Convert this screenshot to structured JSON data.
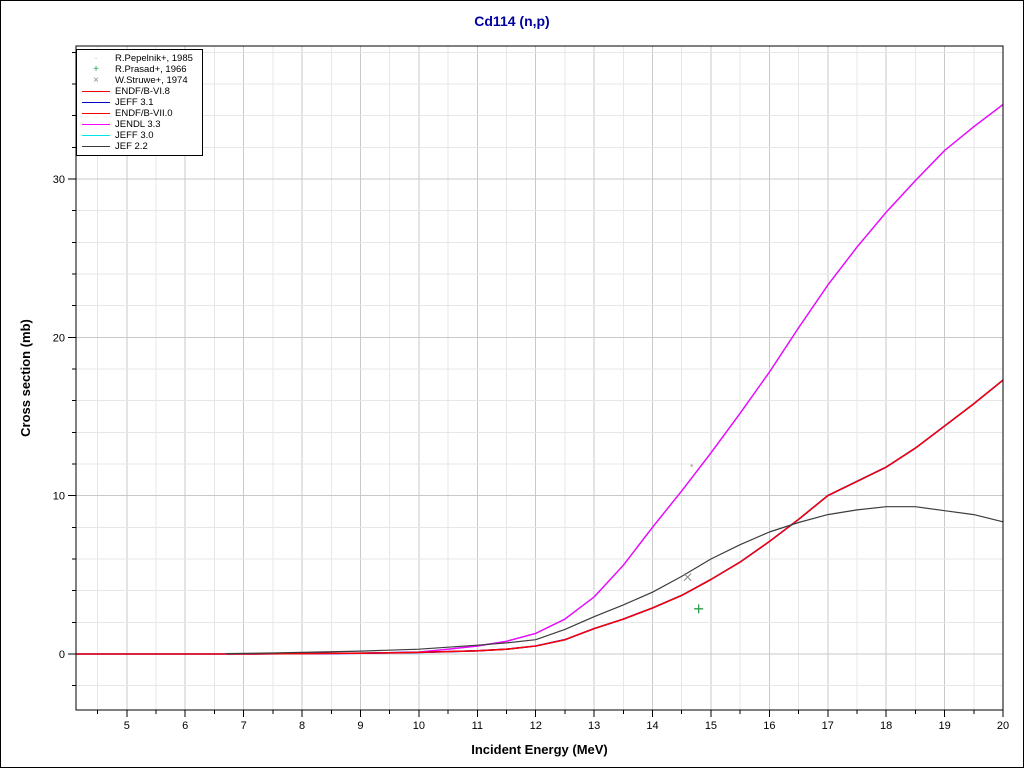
{
  "window": {
    "background": "#ffffff",
    "border_color": "#000000"
  },
  "colors": {
    "title": "#0000a0",
    "axis": "#000000",
    "grid_major": "#c9c9c9",
    "grid_minor": "#e7e7e7",
    "endf_b_vi8": "#f00000",
    "jeff_31": "#0000cc",
    "endf_b_vii0": "#ff0000",
    "jendl_33": "#ff00ff",
    "jeff_30": "#00e6e6",
    "jef_22": "#3c3c3c",
    "pepelnik": "#b4b4b4",
    "prasad": "#2e9b4e",
    "struwe": "#8a8a8a"
  },
  "chart_data": {
    "type": "line",
    "title": "Cd114 (n,p)",
    "xlabel": "Incident Energy (MeV)",
    "ylabel": "Cross section (mb)",
    "xlim": [
      4.13,
      20
    ],
    "ylim": [
      -3.54,
      38.4
    ],
    "x_major_tick_step": 1,
    "x_minor_tick_step": 0.5,
    "x_tick_labels": [
      5,
      6,
      7,
      8,
      9,
      10,
      11,
      12,
      13,
      14,
      15,
      16,
      17,
      18,
      19,
      20
    ],
    "y_major_tick_step": 10,
    "y_minor_tick_step": 2,
    "y_tick_labels": [
      0,
      10,
      20,
      30
    ],
    "grid": true,
    "legend_position": "top-left",
    "series": [
      {
        "name": "JEFF 3.0",
        "color": "#00e6e6",
        "width": 1.4,
        "points": [
          [
            8,
            0.01
          ],
          [
            9,
            0.04
          ],
          [
            10,
            0.12
          ],
          [
            10.5,
            0.3
          ],
          [
            11,
            0.5
          ],
          [
            11.5,
            0.8
          ],
          [
            12,
            1.3
          ],
          [
            12.5,
            2.2
          ],
          [
            13,
            3.6
          ],
          [
            13.5,
            5.6
          ],
          [
            14,
            8.0
          ],
          [
            14.5,
            10.3
          ],
          [
            15,
            12.7
          ],
          [
            15.5,
            15.2
          ],
          [
            16,
            17.8
          ],
          [
            16.5,
            20.6
          ],
          [
            17,
            23.3
          ],
          [
            17.5,
            25.7
          ],
          [
            18,
            27.9
          ],
          [
            18.5,
            29.9
          ],
          [
            19,
            31.8
          ],
          [
            19.5,
            33.3
          ],
          [
            20,
            34.7
          ]
        ]
      },
      {
        "name": "JENDL 3.3",
        "color": "#ff00ff",
        "width": 1.4,
        "points": [
          [
            8,
            0.01
          ],
          [
            9,
            0.04
          ],
          [
            10,
            0.12
          ],
          [
            10.5,
            0.3
          ],
          [
            11,
            0.5
          ],
          [
            11.5,
            0.8
          ],
          [
            12,
            1.3
          ],
          [
            12.5,
            2.2
          ],
          [
            13,
            3.6
          ],
          [
            13.5,
            5.6
          ],
          [
            14,
            8.0
          ],
          [
            14.5,
            10.3
          ],
          [
            15,
            12.7
          ],
          [
            15.5,
            15.2
          ],
          [
            16,
            17.8
          ],
          [
            16.5,
            20.6
          ],
          [
            17,
            23.3
          ],
          [
            17.5,
            25.7
          ],
          [
            18,
            27.9
          ],
          [
            18.5,
            29.9
          ],
          [
            19,
            31.8
          ],
          [
            19.5,
            33.3
          ],
          [
            20,
            34.7
          ]
        ]
      },
      {
        "name": "JEFF 3.1",
        "color": "#0000cc",
        "width": 1.6,
        "points": [
          [
            4.13,
            0
          ],
          [
            5,
            0
          ],
          [
            6,
            0
          ],
          [
            7,
            0
          ],
          [
            8,
            0.02
          ],
          [
            9,
            0.05
          ],
          [
            10,
            0.1
          ],
          [
            11,
            0.2
          ],
          [
            11.5,
            0.3
          ],
          [
            12,
            0.5
          ],
          [
            12.5,
            0.9
          ],
          [
            13,
            1.6
          ],
          [
            13.5,
            2.2
          ],
          [
            14,
            2.9
          ],
          [
            14.5,
            3.7
          ],
          [
            15,
            4.7
          ],
          [
            15.5,
            5.8
          ],
          [
            16,
            7.1
          ],
          [
            16.5,
            8.5
          ],
          [
            17,
            10.0
          ],
          [
            17.5,
            10.9
          ],
          [
            18,
            11.8
          ],
          [
            18.5,
            13.0
          ],
          [
            19,
            14.4
          ],
          [
            19.5,
            15.8
          ],
          [
            20,
            17.3
          ]
        ]
      },
      {
        "name": "ENDF/B-VI.8",
        "color": "#f00000",
        "width": 1.3,
        "points": [
          [
            4.13,
            0
          ],
          [
            5,
            0
          ],
          [
            6,
            0
          ],
          [
            7,
            0
          ],
          [
            8,
            0.02
          ],
          [
            9,
            0.05
          ],
          [
            10,
            0.1
          ],
          [
            11,
            0.2
          ],
          [
            11.5,
            0.3
          ],
          [
            12,
            0.5
          ],
          [
            12.5,
            0.9
          ],
          [
            13,
            1.6
          ],
          [
            13.5,
            2.2
          ],
          [
            14,
            2.9
          ],
          [
            14.5,
            3.7
          ],
          [
            15,
            4.7
          ],
          [
            15.5,
            5.8
          ],
          [
            16,
            7.1
          ],
          [
            16.5,
            8.5
          ],
          [
            17,
            10.0
          ],
          [
            17.5,
            10.9
          ],
          [
            18,
            11.8
          ],
          [
            18.5,
            13.0
          ],
          [
            19,
            14.4
          ],
          [
            19.5,
            15.8
          ],
          [
            20,
            17.3
          ]
        ]
      },
      {
        "name": "ENDF/B-VII.0",
        "color": "#ff0000",
        "width": 1.3,
        "points": [
          [
            4.13,
            0
          ],
          [
            5,
            0
          ],
          [
            6,
            0
          ],
          [
            7,
            0
          ],
          [
            8,
            0.02
          ],
          [
            9,
            0.05
          ],
          [
            10,
            0.1
          ],
          [
            11,
            0.2
          ],
          [
            11.5,
            0.3
          ],
          [
            12,
            0.5
          ],
          [
            12.5,
            0.9
          ],
          [
            13,
            1.6
          ],
          [
            13.5,
            2.2
          ],
          [
            14,
            2.9
          ],
          [
            14.5,
            3.7
          ],
          [
            15,
            4.7
          ],
          [
            15.5,
            5.8
          ],
          [
            16,
            7.1
          ],
          [
            16.5,
            8.5
          ],
          [
            17,
            10.0
          ],
          [
            17.5,
            10.9
          ],
          [
            18,
            11.8
          ],
          [
            18.5,
            13.0
          ],
          [
            19,
            14.4
          ],
          [
            19.5,
            15.8
          ],
          [
            20,
            17.3
          ]
        ]
      },
      {
        "name": "JEF 2.2",
        "color": "#3c3c3c",
        "width": 1.2,
        "points": [
          [
            6.7,
            0.02
          ],
          [
            7.5,
            0.06
          ],
          [
            8,
            0.1
          ],
          [
            9,
            0.18
          ],
          [
            10,
            0.3
          ],
          [
            11,
            0.55
          ],
          [
            11.5,
            0.7
          ],
          [
            12,
            0.9
          ],
          [
            12.5,
            1.55
          ],
          [
            13,
            2.35
          ],
          [
            13.5,
            3.1
          ],
          [
            14,
            3.9
          ],
          [
            14.5,
            4.9
          ],
          [
            15,
            6.0
          ],
          [
            15.5,
            6.9
          ],
          [
            16,
            7.7
          ],
          [
            16.5,
            8.3
          ],
          [
            17,
            8.8
          ],
          [
            17.5,
            9.1
          ],
          [
            18,
            9.3
          ],
          [
            18.5,
            9.3
          ],
          [
            19,
            9.05
          ],
          [
            19.5,
            8.8
          ],
          [
            20,
            8.35
          ]
        ]
      }
    ],
    "points_series": [
      {
        "name": "R.Pepelnik+, 1985",
        "marker": "dot",
        "color": "#b4b4b4",
        "points": [
          [
            14.67,
            11.9
          ]
        ]
      },
      {
        "name": "R.Prasad+, 1966",
        "marker": "plus",
        "color": "#2e9b4e",
        "points": [
          [
            14.79,
            2.85
          ]
        ]
      },
      {
        "name": "W.Struwe+, 1974",
        "marker": "x",
        "color": "#8a8a8a",
        "points": [
          [
            14.6,
            4.85
          ]
        ]
      }
    ]
  },
  "legend": {
    "items": [
      {
        "label": "R.Pepelnik+, 1985",
        "swatch": "dot",
        "color": "#b4b4b4"
      },
      {
        "label": "R.Prasad+, 1966",
        "swatch": "plus",
        "color": "#2e9b4e"
      },
      {
        "label": "W.Struwe+, 1974",
        "swatch": "x",
        "color": "#8a8a8a"
      },
      {
        "label": "ENDF/B-VI.8",
        "swatch": "line",
        "color": "#f00000"
      },
      {
        "label": "JEFF 3.1",
        "swatch": "line",
        "color": "#0000cc"
      },
      {
        "label": "ENDF/B-VII.0",
        "swatch": "line",
        "color": "#ff0000"
      },
      {
        "label": "JENDL 3.3",
        "swatch": "line",
        "color": "#ff00ff"
      },
      {
        "label": "JEFF 3.0",
        "swatch": "line",
        "color": "#00e6e6"
      },
      {
        "label": "JEF 2.2",
        "swatch": "line",
        "color": "#3c3c3c"
      }
    ]
  }
}
